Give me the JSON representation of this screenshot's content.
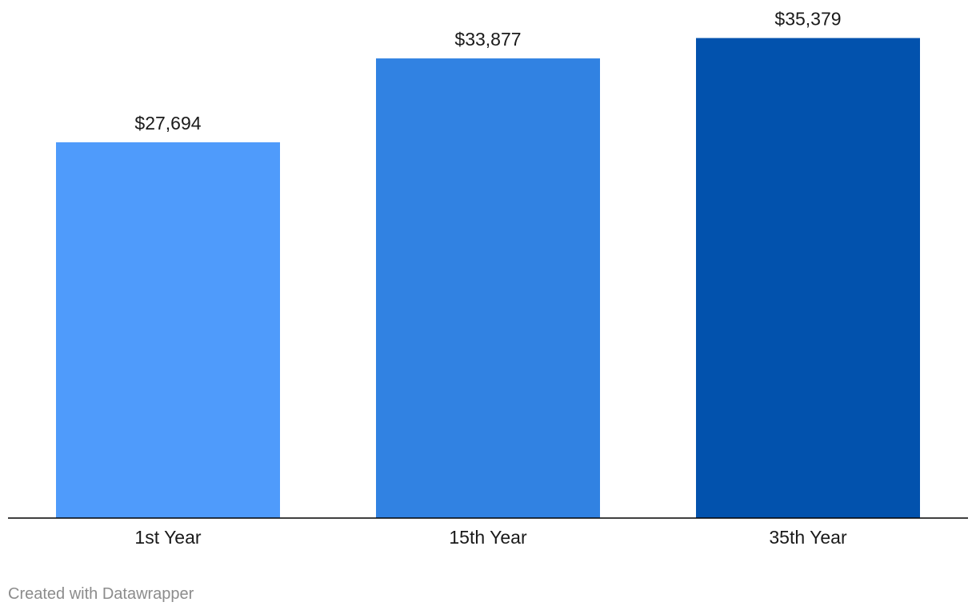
{
  "chart_data": {
    "type": "bar",
    "categories": [
      "1st Year",
      "15th Year",
      "35th Year"
    ],
    "values": [
      27694,
      33877,
      35379
    ],
    "value_labels": [
      "$27,694",
      "$33,877",
      "$35,379"
    ],
    "colors": [
      "#4f9bfb",
      "#3182e2",
      "#0252ad"
    ],
    "axis_color": "#000000",
    "ylim": [
      0,
      38000
    ],
    "grid": false,
    "legend": "none",
    "title": "",
    "xlabel": "",
    "ylabel": ""
  },
  "footer": {
    "credit": "Created with Datawrapper"
  }
}
